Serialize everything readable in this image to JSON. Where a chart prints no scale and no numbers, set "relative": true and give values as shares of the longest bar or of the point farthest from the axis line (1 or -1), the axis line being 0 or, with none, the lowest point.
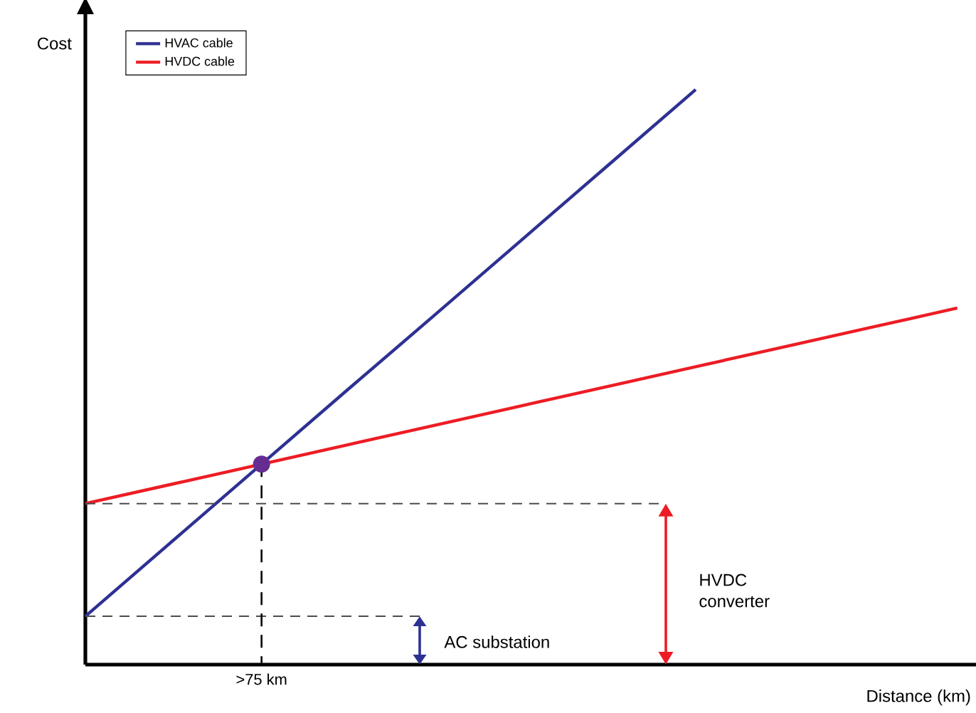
{
  "chart_data": {
    "type": "line",
    "relative": true,
    "xlabel": "Distance (km)",
    "ylabel": "Cost",
    "legend": "top left",
    "marker": "none",
    "line_style": "solid",
    "categories": [
      null,
      null,
      null,
      null,
      null,
      null,
      null,
      null,
      null,
      null,
      null
    ],
    "series": [
      {
        "name": "HVAC cable",
        "color": "#2e3192",
        "values": [
          0.084,
          0.215,
          0.346,
          0.477,
          0.607,
          0.738,
          0.869,
          1.0,
          null,
          null,
          null
        ]
      },
      {
        "name": "HVDC cable",
        "color": "#ed1c24",
        "values": [
          0.28,
          0.314,
          0.348,
          0.382,
          0.416,
          0.45,
          0.484,
          0.518,
          0.552,
          0.586,
          0.62
        ]
      }
    ],
    "annotations": [
      "AC substation",
      "HVDC converter",
      ">75 km"
    ]
  }
}
